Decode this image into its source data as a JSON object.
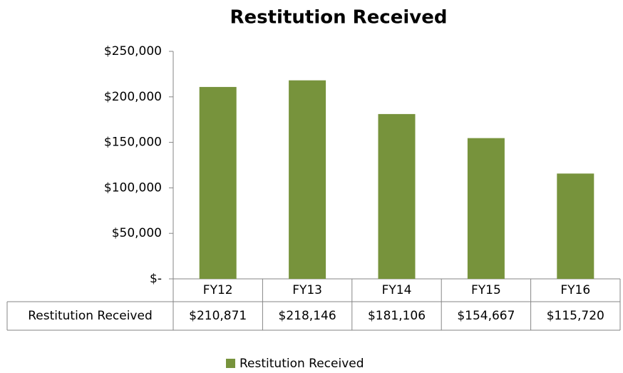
{
  "chart_data": {
    "type": "bar",
    "title": "Restitution Received",
    "categories": [
      "FY12",
      "FY13",
      "FY14",
      "FY15",
      "FY16"
    ],
    "series": [
      {
        "name": "Restitution Received",
        "color": "#77933c",
        "values": [
          210871,
          218146,
          181106,
          154667,
          115720
        ],
        "value_labels": [
          "$210,871",
          "$218,146",
          "$181,106",
          "$154,667",
          "$115,720"
        ]
      }
    ],
    "ylim": [
      0,
      250000
    ],
    "yticks": [
      {
        "value": 0,
        "label": "$-"
      },
      {
        "value": 50000,
        "label": "$50,000"
      },
      {
        "value": 100000,
        "label": "$100,000"
      },
      {
        "value": 150000,
        "label": "$150,000"
      },
      {
        "value": 200000,
        "label": "$200,000"
      },
      {
        "value": 250000,
        "label": "$250,000"
      }
    ],
    "grid": false,
    "legend": "bottom",
    "data_table": true
  }
}
